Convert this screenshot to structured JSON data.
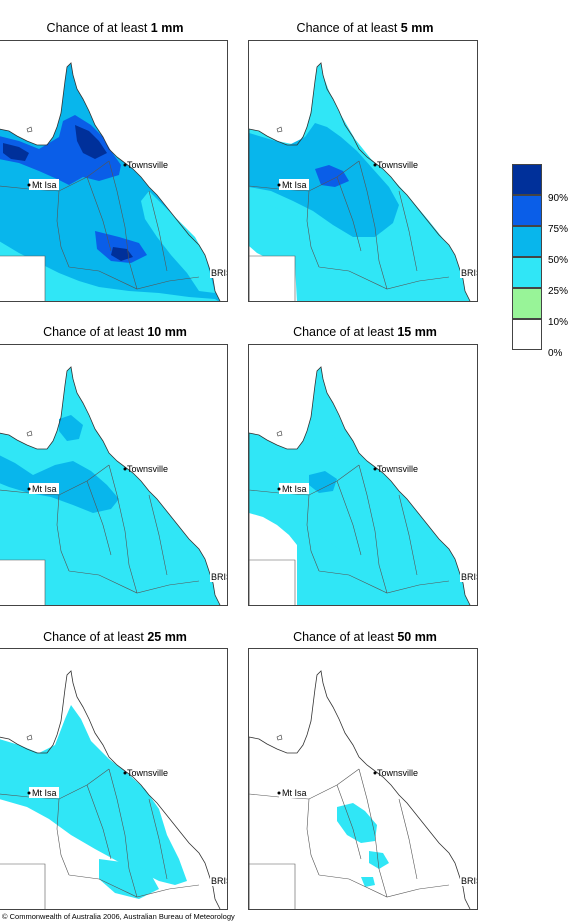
{
  "panels": [
    {
      "title_prefix": "Chance of at least ",
      "amount": "1 mm",
      "variant": "p1"
    },
    {
      "title_prefix": "Chance of at least ",
      "amount": "5 mm",
      "variant": "p5"
    },
    {
      "title_prefix": "Chance of at least ",
      "amount": "10 mm",
      "variant": "p10"
    },
    {
      "title_prefix": "Chance of at least ",
      "amount": "15 mm",
      "variant": "p15"
    },
    {
      "title_prefix": "Chance of at least ",
      "amount": "25 mm",
      "variant": "p25"
    },
    {
      "title_prefix": "Chance of at least ",
      "amount": "50 mm",
      "variant": "p50"
    }
  ],
  "places": {
    "townsville": "Townsville",
    "mt_isa": "Mt Isa",
    "brisbane": "BRIS"
  },
  "legend": {
    "labels": [
      "90%",
      "75%",
      "50%",
      "25%",
      "10%",
      "0%"
    ],
    "colors": [
      "#00309a",
      "#0a5ee8",
      "#08b6ec",
      "#30e6f6",
      "#98f498",
      "#ffffff"
    ]
  },
  "copyright": "© Commonwealth of Australia 2006, Australian Bureau of Meteorology"
}
